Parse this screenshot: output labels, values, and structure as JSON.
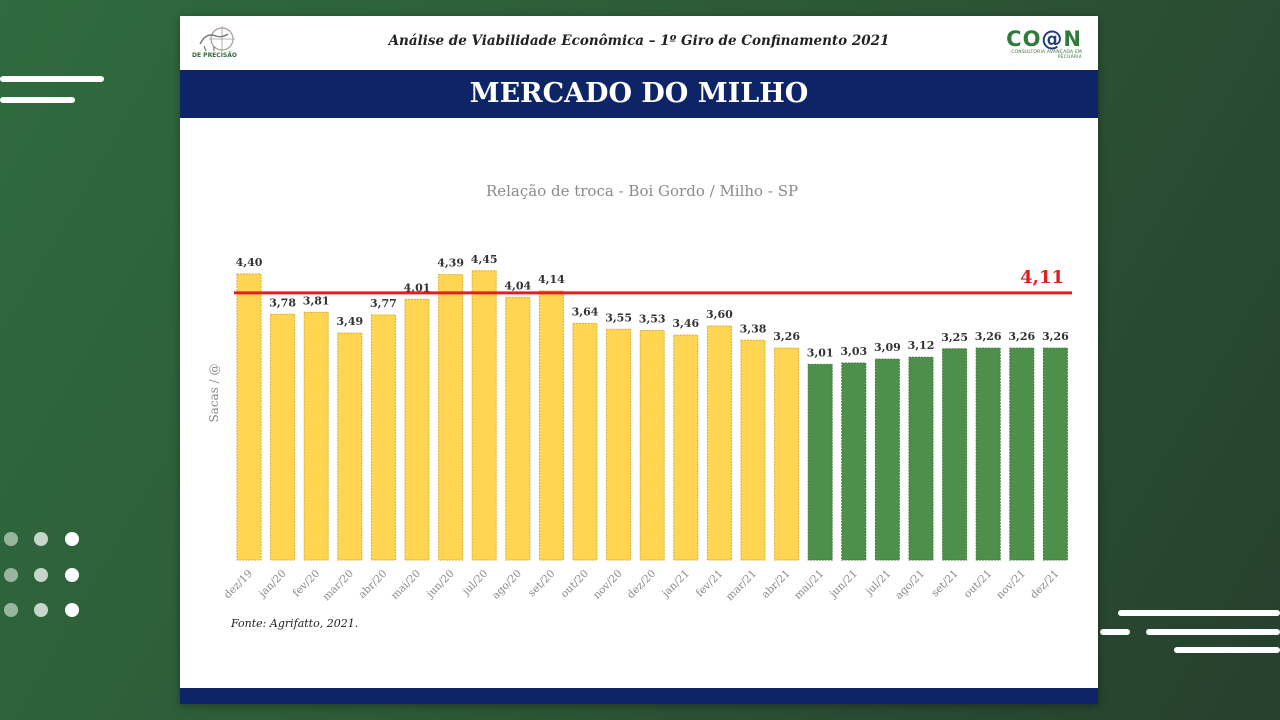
{
  "header": {
    "title": "Análise de Viabilidade Econômica – 1º Giro de Confinamento 2021",
    "logo_left": "DE PRECISÃO",
    "logo_right": {
      "main_a": "CO",
      "main_at": "@",
      "main_b": "N",
      "sub": "CONSULTORIA AVANÇADA EM PECUÁRIA"
    }
  },
  "banner": {
    "title": "MERCADO DO MILHO"
  },
  "colors": {
    "bar_2020": "#ffd551",
    "bar_2021": "#4f8f4c",
    "reference": "#e02020",
    "banner": "#0d2566"
  },
  "chart_data": {
    "type": "bar",
    "title": "Relação de troca - Boi Gordo / Milho - SP",
    "ylabel": "Sacas / @",
    "xlabel": "",
    "ylim": [
      0,
      4.6
    ],
    "categories": [
      "dez/19",
      "jan/20",
      "fev/20",
      "mar/20",
      "abr/20",
      "mai/20",
      "jun/20",
      "jul/20",
      "ago/20",
      "set/20",
      "out/20",
      "nov/20",
      "dez/20",
      "jan/21",
      "fev/21",
      "mar/21",
      "abr/21",
      "mai/21",
      "jun/21",
      "jul/21",
      "ago/21",
      "set/21",
      "out/21",
      "nov/21",
      "dez/21"
    ],
    "values": [
      4.4,
      3.78,
      3.81,
      3.49,
      3.77,
      4.01,
      4.39,
      4.45,
      4.04,
      4.14,
      3.64,
      3.55,
      3.53,
      3.46,
      3.6,
      3.38,
      3.26,
      3.01,
      3.03,
      3.09,
      3.12,
      3.25,
      3.26,
      3.26,
      3.26
    ],
    "value_labels": [
      "4,40",
      "3,78",
      "3,81",
      "3,49",
      "3,77",
      "4,01",
      "4,39",
      "4,45",
      "4,04",
      "4,14",
      "3,64",
      "3,55",
      "3,53",
      "3,46",
      "3,60",
      "3,38",
      "3,26",
      "3,01",
      "3,03",
      "3,09",
      "3,12",
      "3,25",
      "3,26",
      "3,26",
      "3,26"
    ],
    "series_colors": [
      "yellow",
      "yellow",
      "yellow",
      "yellow",
      "yellow",
      "yellow",
      "yellow",
      "yellow",
      "yellow",
      "yellow",
      "yellow",
      "yellow",
      "yellow",
      "yellow",
      "yellow",
      "yellow",
      "yellow",
      "green",
      "green",
      "green",
      "green",
      "green",
      "green",
      "green",
      "green"
    ],
    "reference_line": {
      "value": 4.11,
      "label": "4,11"
    },
    "grid": false,
    "legend": "none"
  },
  "source": "Fonte: Agrifatto, 2021."
}
